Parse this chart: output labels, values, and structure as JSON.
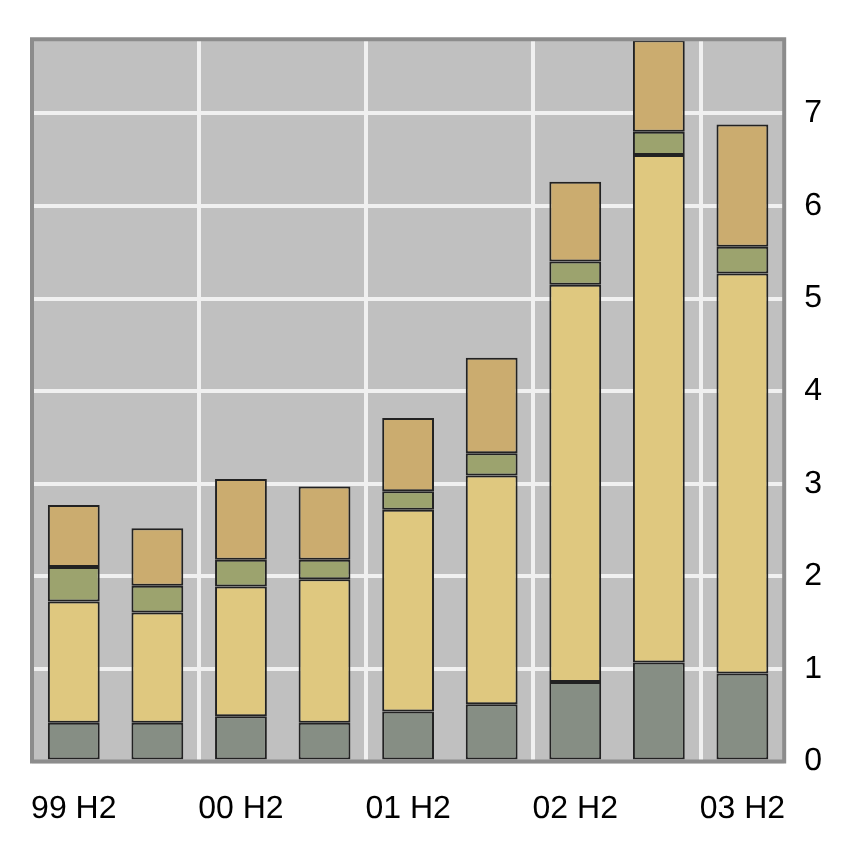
{
  "chart_data": {
    "type": "bar",
    "stacked": true,
    "categories": [
      "99 H2",
      null,
      "00 H2",
      null,
      "01 H2",
      null,
      "02 H2",
      null,
      "03 H2"
    ],
    "series": [
      {
        "color": "#868e84",
        "values": [
          0.42,
          0.42,
          0.49,
          0.42,
          0.54,
          0.62,
          0.86,
          1.07,
          0.95
        ]
      },
      {
        "color": "#dfc87f",
        "values": [
          1.31,
          1.19,
          1.4,
          1.55,
          2.18,
          2.47,
          4.29,
          5.48,
          4.32
        ]
      },
      {
        "color": "#9ca36e",
        "values": [
          0.37,
          0.29,
          0.29,
          0.21,
          0.2,
          0.24,
          0.25,
          0.25,
          0.29
        ]
      },
      {
        "color": "#cbac6f",
        "values": [
          0.67,
          0.62,
          0.87,
          0.79,
          0.79,
          1.03,
          0.86,
          0.99,
          1.32
        ]
      }
    ],
    "ylim": [
      0,
      7.8
    ],
    "yticks": [
      0,
      1,
      2,
      3,
      4,
      5,
      6,
      7
    ],
    "grid": true,
    "legend": false
  }
}
